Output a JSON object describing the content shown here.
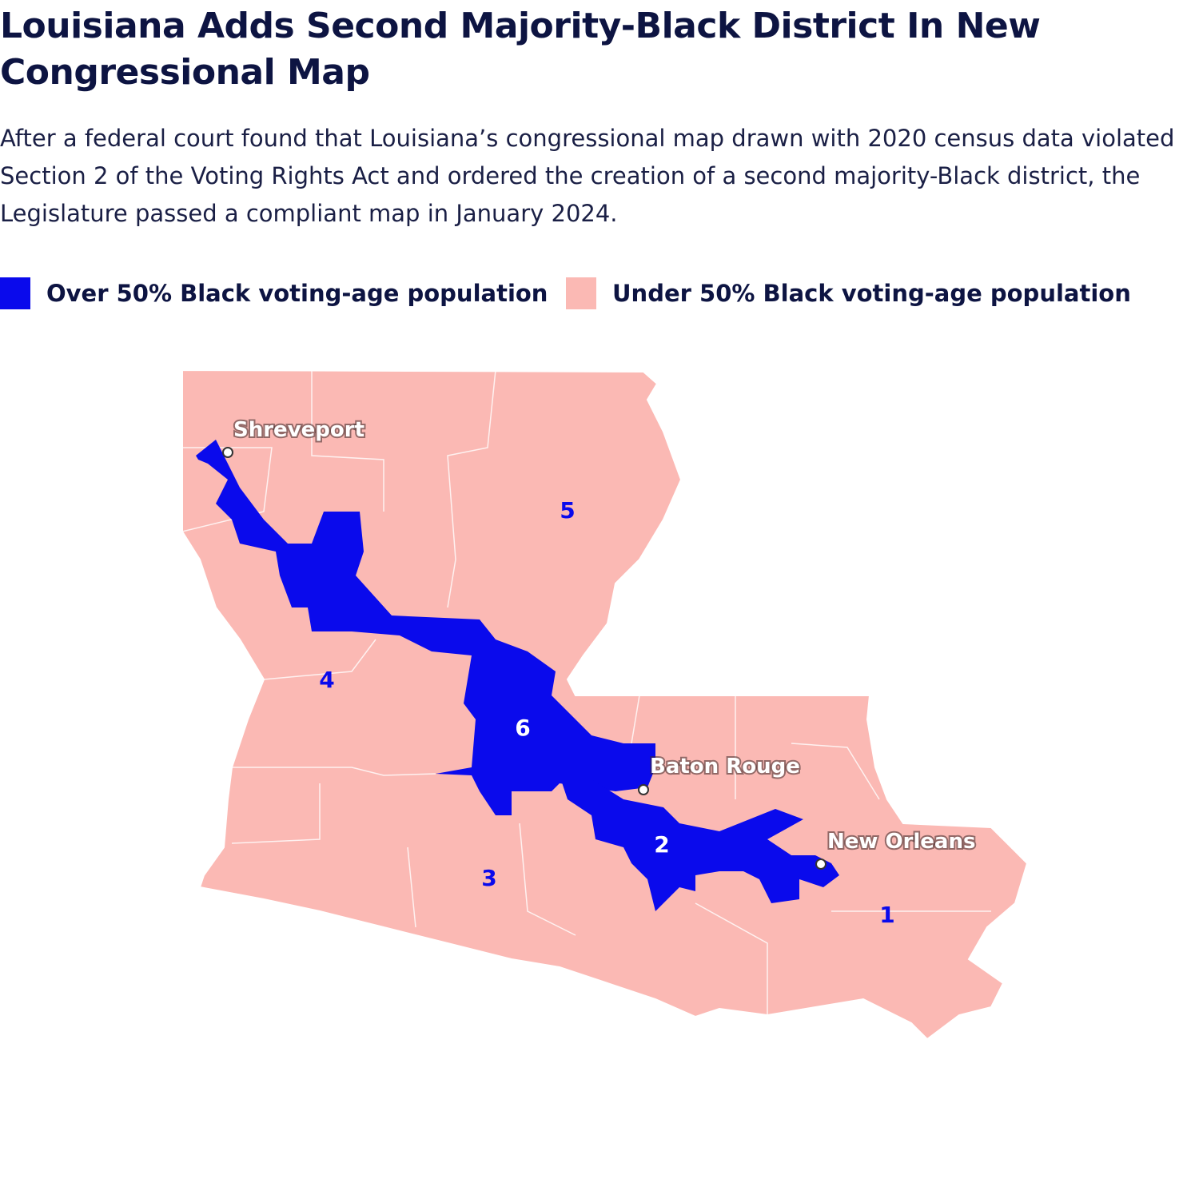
{
  "header": {
    "title": "Louisiana Adds Second Majority-Black District In New Congressional Map",
    "subtitle": "After a federal court found that Louisiana’s congressional map drawn with 2020 census data violated Section 2 of the Voting Rights Act and ordered the creation of a second majority-Black district, the Legislature passed a compliant map in January 2024."
  },
  "legend": {
    "items": [
      {
        "label": "Over 50% Black voting-age population",
        "color": "#0a0aec"
      },
      {
        "label": "Under 50% Black voting-age population",
        "color": "#fbb9b4"
      }
    ]
  },
  "map": {
    "cities": [
      {
        "name": "Shreveport"
      },
      {
        "name": "Baton Rouge"
      },
      {
        "name": "New Orleans"
      }
    ],
    "districts": [
      {
        "label": "1"
      },
      {
        "label": "2"
      },
      {
        "label": "3"
      },
      {
        "label": "4"
      },
      {
        "label": "5"
      },
      {
        "label": "6"
      }
    ]
  }
}
